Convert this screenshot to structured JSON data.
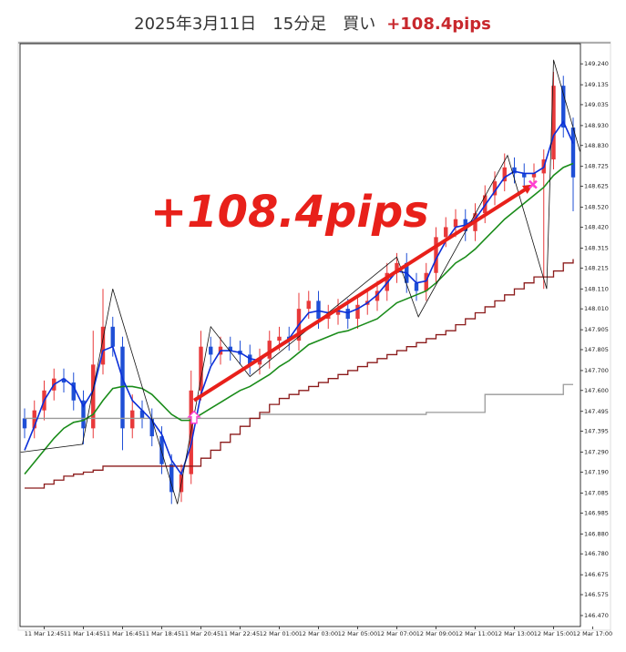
{
  "chart_data": {
    "type": "candlestick",
    "title": "2025年3月11日　15分足　買い",
    "title_result": "+108.4pips",
    "title_result_color": "#c8282d",
    "annotation": "+108.4pips",
    "annotation_color": "#e8201a",
    "categories": [
      null,
      null,
      "11 Mar 12:45",
      null,
      null,
      null,
      "11 Mar 14:45",
      null,
      null,
      null,
      "11 Mar 16:45",
      null,
      null,
      null,
      "11 Mar 18:45",
      null,
      null,
      null,
      "11 Mar 20:45",
      null,
      null,
      null,
      "11 Mar 22:45",
      null,
      null,
      null,
      "12 Mar 01:00",
      null,
      null,
      null,
      "12 Mar 03:00",
      null,
      null,
      null,
      "12 Mar 05:00",
      null,
      null,
      null,
      "12 Mar 07:00",
      null,
      null,
      null,
      "12 Mar 09:00",
      null,
      null,
      null,
      "12 Mar 11:00",
      null,
      null,
      null,
      "12 Mar 13:00",
      null,
      null,
      null,
      "12 Mar 15:00",
      null,
      null,
      null,
      "12 Mar 17:00"
    ],
    "open": [
      147.46,
      147.41,
      147.5,
      147.6,
      147.66,
      147.64,
      147.55,
      147.41,
      147.73,
      147.92,
      147.82,
      147.41,
      147.5,
      147.46,
      147.37,
      147.23,
      147.09,
      147.18,
      147.6,
      147.82,
      147.78,
      147.82,
      147.8,
      147.78,
      147.73,
      147.76,
      147.85,
      147.87,
      147.85,
      148.01,
      148.05,
      147.96,
      147.98,
      148.01,
      147.96,
      148.03,
      148.05,
      148.1,
      148.19,
      148.24,
      148.14,
      148.1,
      148.19,
      148.37,
      148.42,
      148.46,
      148.4,
      148.49,
      148.58,
      148.65,
      148.72,
      148.69,
      148.67,
      148.69,
      148.76,
      149.13,
      148.92,
      null,
      null
    ],
    "high": [
      147.51,
      147.55,
      147.65,
      147.71,
      147.71,
      147.69,
      147.6,
      147.9,
      148.11,
      147.97,
      147.87,
      147.58,
      147.55,
      147.51,
      147.42,
      147.28,
      147.23,
      147.7,
      147.9,
      147.87,
      147.87,
      147.87,
      147.85,
      147.83,
      147.81,
      147.9,
      147.92,
      147.92,
      148.09,
      148.1,
      148.1,
      148.03,
      148.06,
      148.06,
      148.08,
      148.1,
      148.15,
      148.24,
      148.29,
      148.29,
      148.19,
      148.24,
      148.42,
      148.47,
      148.51,
      148.51,
      148.54,
      148.63,
      148.7,
      148.79,
      148.77,
      148.74,
      148.74,
      148.81,
      149.2,
      149.18,
      148.97,
      null,
      null
    ],
    "low": [
      147.36,
      147.36,
      147.45,
      147.55,
      147.59,
      147.5,
      147.33,
      147.36,
      147.68,
      147.77,
      147.3,
      147.36,
      147.41,
      147.32,
      147.18,
      147.03,
      147.04,
      147.13,
      147.55,
      147.73,
      147.73,
      147.75,
      147.73,
      147.68,
      147.68,
      147.71,
      147.8,
      147.8,
      147.8,
      147.96,
      147.91,
      147.91,
      147.93,
      147.91,
      147.91,
      147.98,
      148.0,
      148.05,
      148.14,
      148.09,
      148.05,
      148.05,
      148.14,
      148.32,
      148.37,
      148.35,
      148.35,
      148.44,
      148.53,
      148.6,
      148.64,
      148.62,
      148.62,
      148.11,
      148.71,
      148.87,
      148.5,
      null,
      null
    ],
    "close": [
      147.41,
      147.5,
      147.6,
      147.66,
      147.64,
      147.55,
      147.41,
      147.73,
      147.92,
      147.82,
      147.41,
      147.5,
      147.46,
      147.37,
      147.23,
      147.09,
      147.18,
      147.6,
      147.82,
      147.78,
      147.82,
      147.8,
      147.78,
      147.73,
      147.76,
      147.85,
      147.87,
      147.85,
      148.01,
      148.05,
      147.96,
      147.98,
      148.01,
      147.96,
      148.03,
      148.05,
      148.1,
      148.19,
      148.24,
      148.14,
      148.1,
      148.19,
      148.37,
      148.42,
      148.46,
      148.4,
      148.49,
      148.58,
      148.65,
      148.72,
      148.69,
      148.67,
      148.69,
      148.76,
      149.13,
      148.92,
      148.67,
      null,
      null
    ],
    "up_color": "#e8393a",
    "down_color": "#1f4fd6",
    "series": [
      {
        "style": "step",
        "color": "#9a9a9a",
        "values": [
          147.46,
          147.46,
          147.46,
          147.46,
          147.46,
          147.46,
          147.46,
          147.46,
          147.46,
          147.46,
          147.46,
          147.46,
          147.46,
          147.46,
          147.46,
          147.46,
          147.46,
          147.46,
          147.46,
          147.46,
          147.46,
          147.46,
          147.46,
          147.46,
          147.48,
          147.48,
          147.48,
          147.48,
          147.48,
          147.48,
          147.48,
          147.48,
          147.48,
          147.48,
          147.48,
          147.48,
          147.48,
          147.48,
          147.48,
          147.48,
          147.48,
          147.49,
          147.49,
          147.49,
          147.49,
          147.49,
          147.49,
          147.58,
          147.58,
          147.58,
          147.58,
          147.58,
          147.58,
          147.58,
          147.58,
          147.63,
          147.63,
          null,
          null
        ]
      },
      {
        "style": "step",
        "color": "#8b1a1a",
        "values": [
          147.11,
          147.11,
          147.13,
          147.15,
          147.17,
          147.18,
          147.19,
          147.2,
          147.22,
          147.22,
          147.22,
          147.22,
          147.22,
          147.22,
          147.22,
          147.22,
          147.22,
          147.22,
          147.26,
          147.3,
          147.34,
          147.38,
          147.42,
          147.46,
          147.49,
          147.53,
          147.56,
          147.58,
          147.6,
          147.62,
          147.64,
          147.66,
          147.68,
          147.7,
          147.72,
          147.74,
          147.76,
          147.78,
          147.8,
          147.82,
          147.84,
          147.86,
          147.88,
          147.9,
          147.93,
          147.96,
          147.99,
          148.02,
          148.05,
          148.08,
          148.11,
          148.14,
          148.17,
          148.17,
          148.2,
          148.24,
          148.26,
          null,
          null
        ]
      },
      {
        "style": "line",
        "color": "#1a8c1a",
        "values": [
          147.18,
          147.24,
          147.3,
          147.36,
          147.41,
          147.44,
          147.45,
          147.48,
          147.55,
          147.61,
          147.62,
          147.62,
          147.61,
          147.58,
          147.53,
          147.48,
          147.45,
          147.45,
          147.48,
          147.51,
          147.54,
          147.57,
          147.6,
          147.62,
          147.65,
          147.68,
          147.72,
          147.75,
          147.79,
          147.83,
          147.85,
          147.87,
          147.89,
          147.9,
          147.92,
          147.94,
          147.96,
          148.0,
          148.04,
          148.06,
          148.08,
          148.1,
          148.14,
          148.19,
          148.24,
          148.27,
          148.31,
          148.36,
          148.41,
          148.46,
          148.5,
          148.54,
          148.58,
          148.62,
          148.68,
          148.72,
          148.74,
          null,
          null
        ]
      },
      {
        "style": "line",
        "color": "#0b2fd9",
        "values": [
          147.3,
          147.42,
          147.55,
          147.63,
          147.66,
          147.62,
          147.52,
          147.6,
          147.8,
          147.82,
          147.66,
          147.55,
          147.5,
          147.45,
          147.38,
          147.25,
          147.18,
          147.33,
          147.58,
          147.72,
          147.8,
          147.8,
          147.79,
          147.76,
          147.75,
          147.79,
          147.83,
          147.86,
          147.93,
          147.99,
          148.0,
          147.99,
          148.0,
          147.99,
          148.01,
          148.04,
          148.08,
          148.14,
          148.2,
          148.19,
          148.14,
          148.15,
          148.26,
          148.35,
          148.42,
          148.43,
          148.46,
          148.53,
          148.6,
          148.67,
          148.7,
          148.69,
          148.69,
          148.72,
          148.88,
          148.95,
          148.84,
          null,
          null
        ]
      }
    ],
    "zigzag": {
      "color": "#111111",
      "x": [
        -0.4,
        5.9,
        9.0,
        15.6,
        19.0,
        23.0,
        38.0,
        40.2,
        49.3,
        53.3,
        54.0,
        56.7
      ],
      "values": [
        147.29,
        147.33,
        148.11,
        147.03,
        147.92,
        147.67,
        148.27,
        147.97,
        148.78,
        148.11,
        149.26,
        148.8
      ]
    },
    "entry": {
      "x": 17.3,
      "value": 147.55
    },
    "exit": {
      "x": 51.9,
      "value": 148.634
    },
    "marker_color": "#ff3fd2",
    "arrow_color": "#e8201a",
    "ylim": [
      146.415,
      149.341
    ],
    "yticks": [
      {
        "value": 149.24,
        "label": "149.240"
      },
      149.135,
      149.035,
      {
        "value": 148.93,
        "label": "148.930"
      },
      {
        "value": 148.83,
        "label": "148.830"
      },
      148.725,
      148.625,
      {
        "value": 148.52,
        "label": "148.520"
      },
      {
        "value": 148.42,
        "label": "148.420"
      },
      148.315,
      148.215,
      {
        "value": 148.11,
        "label": "148.110"
      },
      {
        "value": 148.01,
        "label": "148.010"
      },
      147.905,
      147.805,
      {
        "value": 147.7,
        "label": "147.700"
      },
      {
        "value": 147.6,
        "label": "147.600"
      },
      147.495,
      147.395,
      {
        "value": 147.29,
        "label": "147.290"
      },
      {
        "value": 147.19,
        "label": "147.190"
      },
      147.085,
      146.985,
      {
        "value": 146.88,
        "label": "146.880"
      },
      {
        "value": 146.78,
        "label": "146.780"
      },
      146.675,
      146.575,
      {
        "value": 146.47,
        "label": "146.470"
      }
    ]
  }
}
